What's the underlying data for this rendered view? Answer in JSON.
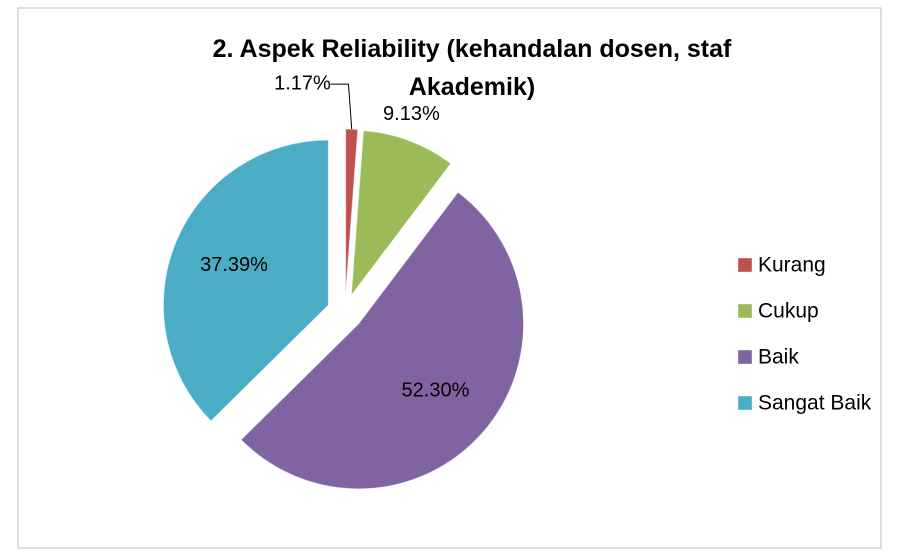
{
  "chart_data": {
    "type": "pie",
    "title": "2. Aspek Reliability (kehandalan dosen, staf Akademik)",
    "categories": [
      "Kurang",
      "Cukup",
      "Baik",
      "Sangat Baik"
    ],
    "values": [
      1.17,
      9.13,
      52.3,
      37.39
    ],
    "value_labels": [
      "1.17%",
      "9.13%",
      "52.30%",
      "37.39%"
    ],
    "colors": [
      "#c0504d",
      "#9bbb59",
      "#8064a2",
      "#4bacc6"
    ],
    "legend": "right"
  }
}
